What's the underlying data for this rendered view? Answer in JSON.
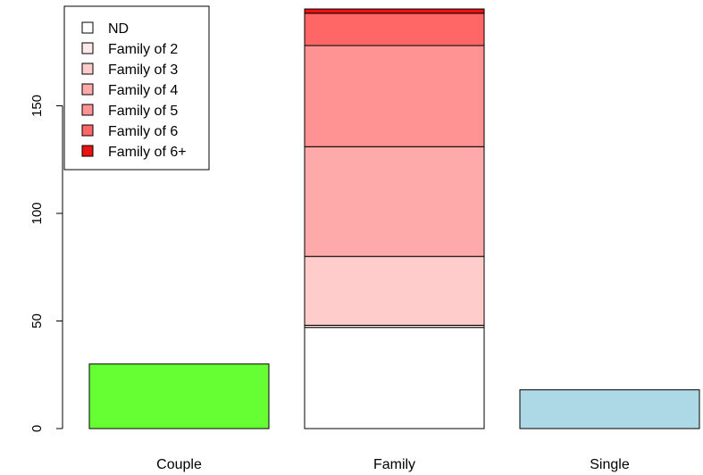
{
  "chart_data": {
    "type": "bar",
    "stacked": true,
    "title": "",
    "xlabel": "",
    "ylabel": "",
    "ylim": [
      0,
      195
    ],
    "yticks": [
      0,
      50,
      100,
      150
    ],
    "grid": false,
    "legend_position": "top-left",
    "categories": [
      "Couple",
      "Family",
      "Single"
    ],
    "bars": [
      {
        "category": "Couple",
        "segments": [
          {
            "label": "",
            "value": 30,
            "color": "#66ff33"
          }
        ]
      },
      {
        "category": "Family",
        "segments": [
          {
            "label": "ND",
            "value": 47,
            "color": "#ffffff"
          },
          {
            "label": "Family of 2",
            "value": 1,
            "color": "#ffe8e8"
          },
          {
            "label": "Family of 3",
            "value": 32,
            "color": "#ffcccc"
          },
          {
            "label": "Family of 4",
            "value": 51,
            "color": "#ffaaaa"
          },
          {
            "label": "Family of 5",
            "value": 47,
            "color": "#ff9292"
          },
          {
            "label": "Family of 6",
            "value": 15,
            "color": "#ff6666"
          },
          {
            "label": "Family of 6+",
            "value": 2,
            "color": "#ee1111"
          }
        ]
      },
      {
        "category": "Single",
        "segments": [
          {
            "label": "",
            "value": 18,
            "color": "#add8e6"
          }
        ]
      }
    ],
    "legend": [
      {
        "label": "ND",
        "color": "#ffffff"
      },
      {
        "label": "Family of 2",
        "color": "#ffe8e8"
      },
      {
        "label": "Family of 3",
        "color": "#ffcccc"
      },
      {
        "label": "Family of 4",
        "color": "#ffaaaa"
      },
      {
        "label": "Family of 5",
        "color": "#ff9292"
      },
      {
        "label": "Family of 6",
        "color": "#ff6666"
      },
      {
        "label": "Family of 6+",
        "color": "#ee1111"
      }
    ]
  }
}
